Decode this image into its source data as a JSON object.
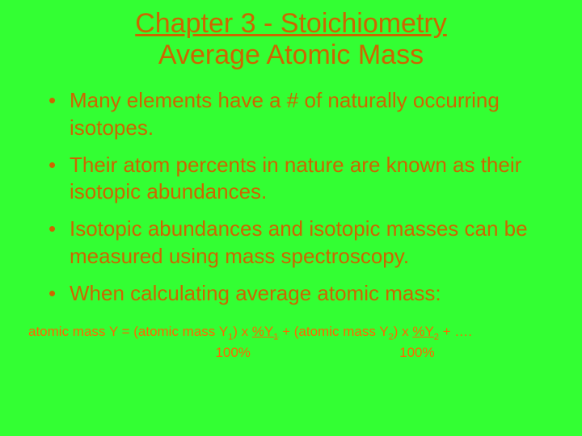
{
  "background_color": "#33ff33",
  "accent_color": "#cc6600",
  "formula_color": "#ff6600",
  "title": {
    "chapter": "Chapter 3 - Stoichiometry",
    "subtitle": "Average Atomic Mass",
    "fontsize": 34,
    "underlined": true
  },
  "bullets": [
    "Many elements have a # of naturally occurring isotopes.",
    "Their atom percents in nature are known as their isotopic abundances.",
    "Isotopic abundances and isotopic masses can be measured using mass spectroscopy.",
    "When calculating average atomic mass:"
  ],
  "bullet_fontsize": 26,
  "formula": {
    "prefix": "atomic mass Y = (atomic mass Y",
    "sub1": "1",
    "mid1": ")   x  ",
    "pct1_label": "%Y",
    "pct1_sub": "1",
    "plus1": "    +    (atomic mass Y",
    "sub2": "2",
    "mid2": ")  x  ",
    "pct2_label": "%Y",
    "pct2_sub": "2",
    "plus2": "    +  ….",
    "denom_spacing1": "                                                 ",
    "denom1": "100%",
    "denom_spacing2": "                                       ",
    "denom2": "100%",
    "fontsize": 17
  }
}
